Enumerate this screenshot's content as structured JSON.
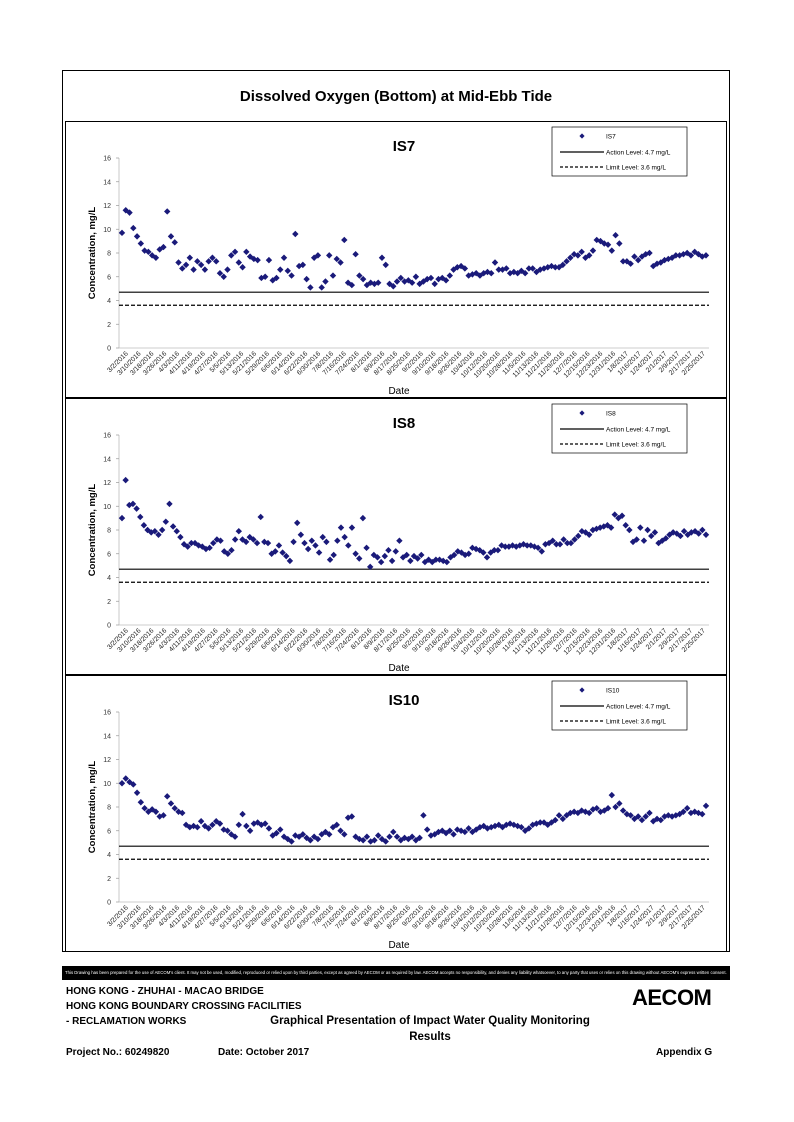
{
  "title": "Dissolved Oxygen (Bottom) at Mid-Ebb Tide",
  "disclaimer": "This Drawing has been prepared for the use of AECOM's client. It may not be used, modified, reproduced or relied upon by third parties, except as agreed by AECOM or as required by law. AECOM accepts no responsibility, and denies any liability whatsoever, to any party that uses or relies on this drawing without AECOM's express written consent.",
  "footer": {
    "line1": "HONG KONG - ZHUHAI - MACAO BRIDGE",
    "line2": "HONG KONG BOUNDARY CROSSING FACILITIES",
    "line3": "- RECLAMATION WORKS",
    "doc_title": "Graphical Presentation of Impact Water Quality Monitoring Results",
    "project_no": "Project No.: 60249820",
    "date": "Date: October 2017",
    "appendix": "Appendix G",
    "logo": "AECOM"
  },
  "colors": {
    "marker": "#1a1a7a",
    "lines": "#000000"
  },
  "chart_data": [
    {
      "type": "scatter",
      "title": "IS7",
      "xlabel": "Date",
      "ylabel": "Concentration, mg/L",
      "ylim": [
        0,
        16
      ],
      "yticks": [
        0,
        2,
        4,
        6,
        8,
        10,
        12,
        14,
        16
      ],
      "x_tick_labels": [
        "3/2/2016",
        "3/10/2016",
        "3/18/2016",
        "3/26/2016",
        "4/3/2016",
        "4/11/2016",
        "4/19/2016",
        "4/27/2016",
        "5/5/2016",
        "5/13/2016",
        "5/21/2016",
        "5/29/2016",
        "6/6/2016",
        "6/14/2016",
        "6/22/2016",
        "6/30/2016",
        "7/8/2016",
        "7/16/2016",
        "7/24/2016",
        "8/1/2016",
        "8/9/2016",
        "8/17/2016",
        "8/25/2016",
        "9/2/2016",
        "9/10/2016",
        "9/18/2016",
        "9/26/2016",
        "10/4/2016",
        "10/12/2016",
        "10/20/2016",
        "10/28/2016",
        "11/5/2016",
        "11/13/2016",
        "11/21/2016",
        "11/29/2016",
        "12/7/2016",
        "12/15/2016",
        "12/23/2016",
        "12/31/2016",
        "1/8/2017",
        "1/16/2017",
        "1/24/2017",
        "2/1/2017",
        "2/9/2017",
        "2/17/2017",
        "2/25/2017"
      ],
      "legend_position": "top-right",
      "legend": {
        "series": "IS7",
        "action": "Action Level: 4.7 mg/L",
        "limit": "Limit Level: 3.6 mg/L"
      },
      "action_level": 4.7,
      "limit_level": 3.6,
      "series": [
        {
          "name": "IS7",
          "values": [
            9.7,
            11.6,
            11.4,
            10.1,
            9.4,
            8.8,
            8.2,
            8.1,
            7.8,
            7.6,
            8.3,
            8.5,
            11.5,
            9.4,
            8.9,
            7.2,
            6.7,
            7.0,
            7.6,
            6.6,
            7.3,
            7.0,
            6.6,
            7.3,
            7.6,
            7.3,
            6.3,
            6.0,
            6.6,
            7.8,
            8.1,
            7.2,
            6.8,
            8.1,
            7.7,
            7.5,
            7.4,
            5.9,
            6.0,
            7.4,
            5.7,
            5.9,
            6.6,
            7.6,
            6.5,
            6.1,
            9.6,
            6.9,
            7.0,
            5.8,
            5.1,
            7.6,
            7.8,
            5.1,
            5.6,
            7.8,
            6.1,
            7.5,
            7.2,
            9.1,
            5.5,
            5.3,
            7.9,
            6.1,
            5.8,
            5.3,
            5.5,
            5.4,
            5.5,
            7.6,
            7.0,
            5.4,
            5.2,
            5.6,
            5.9,
            5.6,
            5.7,
            5.5,
            6.0,
            5.4,
            5.6,
            5.8,
            5.9,
            5.4,
            5.8,
            5.9,
            5.7,
            6.1,
            6.6,
            6.8,
            6.9,
            6.7,
            6.1,
            6.2,
            6.3,
            6.1,
            6.3,
            6.4,
            6.3,
            7.2,
            6.6,
            6.6,
            6.7,
            6.3,
            6.4,
            6.3,
            6.5,
            6.3,
            6.7,
            6.7,
            6.4,
            6.6,
            6.7,
            6.8,
            6.9,
            6.8,
            6.8,
            7.0,
            7.3,
            7.6,
            7.9,
            7.8,
            8.1,
            7.6,
            7.8,
            8.2,
            9.1,
            9.0,
            8.8,
            8.7,
            8.2,
            9.5,
            8.8,
            7.3,
            7.3,
            7.1,
            7.7,
            7.4,
            7.7,
            7.9,
            8.0,
            6.9,
            7.1,
            7.2,
            7.4,
            7.5,
            7.6,
            7.8,
            7.8,
            7.9,
            8.0,
            7.8,
            8.1,
            7.9,
            7.7,
            7.8
          ]
        }
      ]
    },
    {
      "type": "scatter",
      "title": "IS8",
      "xlabel": "Date",
      "ylabel": "Concentration, mg/L",
      "ylim": [
        0,
        16
      ],
      "yticks": [
        0,
        2,
        4,
        6,
        8,
        10,
        12,
        14,
        16
      ],
      "x_tick_labels": [
        "3/2/2016",
        "3/10/2016",
        "3/18/2016",
        "3/26/2016",
        "4/3/2016",
        "4/11/2016",
        "4/19/2016",
        "4/27/2016",
        "5/5/2016",
        "5/13/2016",
        "5/21/2016",
        "5/29/2016",
        "6/6/2016",
        "6/14/2016",
        "6/22/2016",
        "6/30/2016",
        "7/8/2016",
        "7/16/2016",
        "7/24/2016",
        "8/1/2016",
        "8/9/2016",
        "8/17/2016",
        "8/25/2016",
        "9/2/2016",
        "9/10/2016",
        "9/18/2016",
        "9/26/2016",
        "10/4/2016",
        "10/12/2016",
        "10/20/2016",
        "10/28/2016",
        "11/5/2016",
        "11/13/2016",
        "11/21/2016",
        "11/29/2016",
        "12/7/2016",
        "12/15/2016",
        "12/23/2016",
        "12/31/2016",
        "1/8/2017",
        "1/16/2017",
        "1/24/2017",
        "2/1/2017",
        "2/9/2017",
        "2/17/2017",
        "2/25/2017"
      ],
      "legend_position": "top-right",
      "legend": {
        "series": "IS8",
        "action": "Action Level: 4.7 mg/L",
        "limit": "Limit Level: 3.6 mg/L"
      },
      "action_level": 4.7,
      "limit_level": 3.6,
      "series": [
        {
          "name": "IS8",
          "values": [
            9.0,
            12.2,
            10.1,
            10.2,
            9.8,
            9.1,
            8.4,
            8.0,
            7.8,
            7.9,
            7.6,
            8.0,
            8.7,
            10.2,
            8.3,
            7.9,
            7.4,
            6.8,
            6.6,
            6.9,
            6.9,
            6.7,
            6.6,
            6.4,
            6.5,
            6.9,
            7.2,
            7.1,
            6.2,
            6.0,
            6.3,
            7.2,
            7.9,
            7.2,
            7.0,
            7.4,
            7.2,
            6.9,
            9.1,
            7.0,
            6.9,
            6.0,
            6.2,
            6.7,
            6.1,
            5.8,
            5.4,
            7.0,
            8.6,
            7.6,
            6.9,
            6.4,
            7.1,
            6.7,
            6.1,
            7.4,
            7.0,
            5.5,
            5.9,
            7.1,
            8.2,
            7.4,
            6.7,
            8.2,
            6.0,
            5.6,
            9.0,
            6.5,
            4.9,
            5.9,
            5.7,
            5.3,
            5.8,
            6.3,
            5.4,
            6.2,
            7.1,
            5.7,
            5.9,
            5.4,
            5.8,
            5.6,
            5.9,
            5.3,
            5.5,
            5.3,
            5.5,
            5.5,
            5.4,
            5.3,
            5.7,
            5.9,
            6.2,
            6.1,
            5.9,
            6.0,
            6.5,
            6.4,
            6.3,
            6.1,
            5.7,
            6.1,
            6.3,
            6.3,
            6.7,
            6.6,
            6.6,
            6.7,
            6.6,
            6.7,
            6.8,
            6.7,
            6.7,
            6.6,
            6.5,
            6.2,
            6.8,
            6.9,
            7.1,
            6.8,
            6.8,
            7.2,
            6.9,
            6.9,
            7.2,
            7.5,
            7.9,
            7.8,
            7.6,
            8.0,
            8.1,
            8.2,
            8.3,
            8.4,
            8.2,
            9.3,
            9.0,
            9.2,
            8.4,
            8.0,
            7.0,
            7.2,
            8.2,
            7.1,
            8.0,
            7.5,
            7.8,
            6.9,
            7.1,
            7.3,
            7.6,
            7.8,
            7.7,
            7.5,
            7.9,
            7.6,
            7.8,
            7.9,
            7.7,
            8.0,
            7.6
          ]
        }
      ]
    },
    {
      "type": "scatter",
      "title": "IS10",
      "xlabel": "Date",
      "ylabel": "Concentration, mg/L",
      "ylim": [
        0,
        16
      ],
      "yticks": [
        0,
        2,
        4,
        6,
        8,
        10,
        12,
        14,
        16
      ],
      "x_tick_labels": [
        "3/2/2016",
        "3/10/2016",
        "3/18/2016",
        "3/26/2016",
        "4/3/2016",
        "4/11/2016",
        "4/19/2016",
        "4/27/2016",
        "5/5/2016",
        "5/13/2016",
        "5/21/2016",
        "5/29/2016",
        "6/6/2016",
        "6/14/2016",
        "6/22/2016",
        "6/30/2016",
        "7/8/2016",
        "7/16/2016",
        "7/24/2016",
        "8/1/2016",
        "8/9/2016",
        "8/17/2016",
        "8/25/2016",
        "9/2/2016",
        "9/10/2016",
        "9/18/2016",
        "9/26/2016",
        "10/4/2016",
        "10/12/2016",
        "10/20/2016",
        "10/28/2016",
        "11/5/2016",
        "11/13/2016",
        "11/21/2016",
        "11/29/2016",
        "12/7/2016",
        "12/15/2016",
        "12/23/2016",
        "12/31/2016",
        "1/8/2017",
        "1/16/2017",
        "1/24/2017",
        "2/1/2017",
        "2/9/2017",
        "2/17/2017",
        "2/25/2017"
      ],
      "legend_position": "top-right",
      "legend": {
        "series": "IS10",
        "action": "Action Level: 4.7 mg/L",
        "limit": "Limit Level: 3.6 mg/L"
      },
      "action_level": 4.7,
      "limit_level": 3.6,
      "series": [
        {
          "name": "IS10",
          "values": [
            10.0,
            10.4,
            10.1,
            9.9,
            9.2,
            8.4,
            7.9,
            7.6,
            7.8,
            7.6,
            7.2,
            7.3,
            8.9,
            8.3,
            7.9,
            7.6,
            7.5,
            6.5,
            6.3,
            6.4,
            6.3,
            6.8,
            6.4,
            6.2,
            6.5,
            6.8,
            6.6,
            6.1,
            6.0,
            5.7,
            5.5,
            6.5,
            7.4,
            6.4,
            6.0,
            6.6,
            6.7,
            6.5,
            6.6,
            6.2,
            5.6,
            5.8,
            6.1,
            5.5,
            5.3,
            5.1,
            5.6,
            5.5,
            5.7,
            5.4,
            5.2,
            5.5,
            5.3,
            5.7,
            5.9,
            5.7,
            6.3,
            6.5,
            6.0,
            5.7,
            7.1,
            7.2,
            5.5,
            5.3,
            5.2,
            5.5,
            5.1,
            5.2,
            5.6,
            5.3,
            5.1,
            5.5,
            5.9,
            5.5,
            5.2,
            5.4,
            5.3,
            5.5,
            5.2,
            5.4,
            7.3,
            6.1,
            5.6,
            5.7,
            5.9,
            6.0,
            5.8,
            6.0,
            5.7,
            6.1,
            6.0,
            5.9,
            6.2,
            5.9,
            6.1,
            6.3,
            6.4,
            6.2,
            6.3,
            6.4,
            6.5,
            6.3,
            6.5,
            6.6,
            6.5,
            6.4,
            6.3,
            6.0,
            6.2,
            6.5,
            6.6,
            6.7,
            6.7,
            6.5,
            6.7,
            6.9,
            7.3,
            7.0,
            7.3,
            7.5,
            7.6,
            7.5,
            7.7,
            7.6,
            7.5,
            7.8,
            7.9,
            7.6,
            7.7,
            7.9,
            9.0,
            8.0,
            8.3,
            7.7,
            7.4,
            7.3,
            7.0,
            7.2,
            6.9,
            7.2,
            7.5,
            6.8,
            7.0,
            6.9,
            7.2,
            7.3,
            7.2,
            7.3,
            7.4,
            7.6,
            7.9,
            7.5,
            7.6,
            7.5,
            7.4,
            8.1
          ]
        }
      ]
    }
  ]
}
